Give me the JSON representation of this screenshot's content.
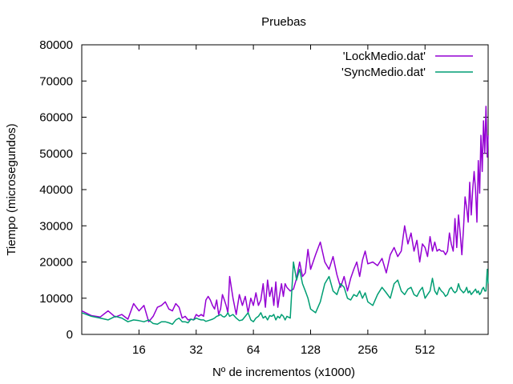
{
  "chart_data": {
    "type": "line",
    "title": "Pruebas",
    "xlabel": "Nº de incrementos (x1000)",
    "ylabel": "Tiempo (microsegundos)",
    "x_scale": "log2",
    "xlim": [
      8,
      1100
    ],
    "ylim": [
      0,
      80000
    ],
    "x_ticks": [
      16,
      32,
      64,
      128,
      256,
      512
    ],
    "y_ticks": [
      0,
      10000,
      20000,
      30000,
      40000,
      50000,
      60000,
      70000,
      80000
    ],
    "grid": false,
    "legend_position": "top-right",
    "series": [
      {
        "name": "'LockMedio.dat'",
        "color": "#9400D3",
        "x": [
          8,
          9,
          10,
          11,
          12,
          13,
          14,
          15,
          16,
          17,
          18,
          19,
          20,
          21,
          22,
          23,
          24,
          25,
          26,
          27,
          28,
          29,
          30,
          31,
          32,
          33,
          34,
          35,
          36,
          37,
          38,
          39,
          40,
          41,
          42,
          43,
          44,
          45,
          46,
          47,
          48,
          50,
          52,
          54,
          56,
          58,
          60,
          62,
          64,
          66,
          68,
          70,
          72,
          74,
          76,
          78,
          80,
          82,
          84,
          86,
          88,
          90,
          92,
          94,
          96,
          100,
          104,
          108,
          112,
          116,
          120,
          124,
          128,
          136,
          144,
          152,
          160,
          168,
          176,
          184,
          192,
          200,
          208,
          216,
          224,
          232,
          240,
          248,
          256,
          272,
          288,
          304,
          320,
          336,
          352,
          368,
          384,
          400,
          416,
          432,
          448,
          464,
          480,
          496,
          512,
          528,
          544,
          560,
          576,
          592,
          608,
          624,
          640,
          656,
          672,
          688,
          704,
          720,
          736,
          752,
          768,
          784,
          800,
          816,
          832,
          848,
          864,
          880,
          896,
          912,
          928,
          944,
          960,
          976,
          992,
          1008,
          1024,
          1040,
          1056,
          1072,
          1088,
          1100
        ],
        "values": [
          6500,
          5200,
          4800,
          6500,
          4800,
          5500,
          4200,
          8500,
          6500,
          8000,
          3500,
          5000,
          7500,
          8000,
          9000,
          7000,
          6500,
          8500,
          7500,
          4500,
          5000,
          4000,
          4200,
          4000,
          5500,
          5000,
          5500,
          5000,
          9500,
          10500,
          9500,
          8000,
          7000,
          9500,
          5500,
          7000,
          11000,
          9500,
          8000,
          6000,
          16000,
          10000,
          5500,
          11000,
          8000,
          10500,
          6000,
          10000,
          8000,
          11500,
          8000,
          9500,
          14000,
          7500,
          15000,
          10500,
          13000,
          8000,
          14500,
          7500,
          11000,
          14000,
          10500,
          14000,
          13000,
          12000,
          12500,
          15500,
          20000,
          16000,
          17000,
          23500,
          18000,
          22000,
          25500,
          20000,
          18000,
          21500,
          16500,
          13000,
          16000,
          12000,
          15500,
          18000,
          20000,
          16000,
          20500,
          23000,
          19500,
          20000,
          19000,
          21000,
          17000,
          22000,
          24000,
          21500,
          23000,
          30000,
          25000,
          28000,
          23000,
          26000,
          20000,
          25000,
          24000,
          21500,
          27000,
          23000,
          25500,
          23000,
          23500,
          23000,
          23000,
          22000,
          23000,
          28000,
          25000,
          23000,
          32000,
          24000,
          33000,
          28000,
          22000,
          29000,
          38000,
          35000,
          31000,
          42000,
          33000,
          40000,
          45000,
          40000,
          31000,
          48000,
          39000,
          55000,
          45000,
          59000,
          50000,
          63000,
          49000,
          55000
        ]
      },
      {
        "name": "'SyncMedio.dat'",
        "color": "#009E73",
        "x": [
          8,
          9,
          10,
          11,
          12,
          13,
          14,
          15,
          16,
          17,
          18,
          19,
          20,
          21,
          22,
          23,
          24,
          25,
          26,
          27,
          28,
          29,
          30,
          31,
          32,
          33,
          34,
          35,
          36,
          37,
          38,
          39,
          40,
          41,
          42,
          43,
          44,
          45,
          46,
          47,
          48,
          50,
          52,
          54,
          56,
          58,
          60,
          62,
          64,
          66,
          68,
          70,
          72,
          74,
          76,
          78,
          80,
          82,
          84,
          86,
          88,
          90,
          92,
          94,
          96,
          100,
          104,
          108,
          112,
          116,
          120,
          124,
          128,
          136,
          144,
          152,
          160,
          168,
          176,
          184,
          192,
          200,
          208,
          216,
          224,
          232,
          240,
          248,
          256,
          272,
          288,
          304,
          320,
          336,
          352,
          368,
          384,
          400,
          416,
          432,
          448,
          464,
          480,
          496,
          512,
          528,
          544,
          560,
          576,
          592,
          608,
          624,
          640,
          656,
          672,
          688,
          704,
          720,
          736,
          752,
          768,
          784,
          800,
          816,
          832,
          848,
          864,
          880,
          896,
          912,
          928,
          944,
          960,
          976,
          992,
          1008,
          1024,
          1040,
          1056,
          1072,
          1088,
          1100
        ],
        "values": [
          6000,
          5000,
          4500,
          4000,
          5000,
          4500,
          3500,
          4000,
          3800,
          3500,
          4000,
          3000,
          2800,
          3500,
          3500,
          3200,
          2800,
          4000,
          4500,
          3500,
          3500,
          3200,
          4200,
          4000,
          4500,
          4200,
          4000,
          4000,
          3600,
          3800,
          4000,
          4200,
          4500,
          5000,
          5200,
          5500,
          5000,
          4800,
          5200,
          6000,
          5000,
          5500,
          4500,
          3800,
          4000,
          5000,
          6000,
          4000,
          3500,
          4500,
          5000,
          6000,
          4500,
          5000,
          4000,
          5200,
          5000,
          5500,
          4000,
          5000,
          4500,
          5500,
          5000,
          4000,
          5000,
          4500,
          20000,
          15000,
          18000,
          14000,
          12000,
          10000,
          7000,
          6000,
          9000,
          14000,
          16000,
          12000,
          11000,
          14000,
          13000,
          10000,
          9500,
          11000,
          10500,
          12000,
          10000,
          11500,
          9000,
          8000,
          11000,
          13000,
          11500,
          10000,
          14000,
          15000,
          12000,
          11000,
          12500,
          13000,
          11000,
          10500,
          12000,
          13000,
          10000,
          11000,
          12000,
          15500,
          12000,
          11000,
          13000,
          12000,
          11500,
          10500,
          11000,
          12500,
          13000,
          12000,
          11500,
          12000,
          14000,
          12500,
          12000,
          11500,
          12000,
          13000,
          11500,
          12000,
          11000,
          11500,
          12000,
          12500,
          11500,
          12000,
          11000,
          11500,
          12500,
          13000,
          12000,
          12000,
          18000,
          14000
        ]
      }
    ]
  }
}
